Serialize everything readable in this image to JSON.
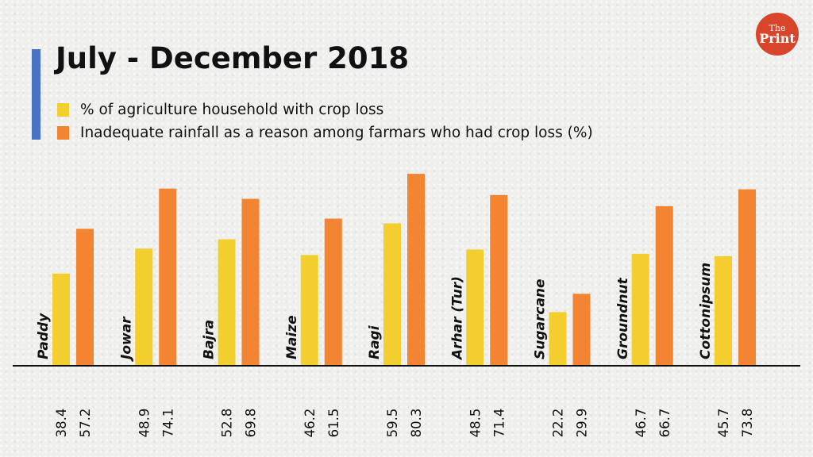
{
  "title": "July - December 2018",
  "legend": {
    "crop_loss": "% of agriculture household with crop loss",
    "rainfall": "Inadequate rainfall as a reason among farmars who had crop loss (%)"
  },
  "logo": {
    "line1": "The",
    "line2": "Print"
  },
  "colors": {
    "accent_bar": "#4a72c4",
    "crop_loss": "#f2cf2e",
    "rainfall": "#f28432",
    "axis": "#111111",
    "logo_bg": "#d8452a"
  },
  "chart_data": {
    "type": "bar",
    "title": "July - December 2018",
    "categories": [
      "Paddy",
      "Jowar",
      "Bajra",
      "Maize",
      "Ragi",
      "Arhar (Tur)",
      "Sugarcane",
      "Groundnut",
      "Cottonipsum"
    ],
    "series": [
      {
        "name": "% of agriculture household with crop loss",
        "values": [
          38.4,
          48.9,
          52.8,
          46.2,
          59.5,
          48.5,
          22.2,
          46.7,
          45.7
        ]
      },
      {
        "name": "Inadequate rainfall as a reason among farmars who had crop loss (%)",
        "values": [
          57.2,
          74.1,
          69.8,
          61.5,
          80.3,
          71.4,
          29.9,
          66.7,
          73.8
        ]
      }
    ],
    "value_labels": [
      [
        "38.4",
        "48.9",
        "52.8",
        "46.2",
        "59.5",
        "48.5",
        "22.2",
        "46.7",
        "45.7"
      ],
      [
        "57.2",
        "74.1",
        "69.8",
        "61.5",
        "80.3",
        "71.4",
        "29.9",
        "66.7",
        "73.8"
      ]
    ],
    "ylim": [
      0,
      90
    ],
    "xlabel": "",
    "ylabel": "",
    "grid": false,
    "legend_position": "top-left"
  }
}
